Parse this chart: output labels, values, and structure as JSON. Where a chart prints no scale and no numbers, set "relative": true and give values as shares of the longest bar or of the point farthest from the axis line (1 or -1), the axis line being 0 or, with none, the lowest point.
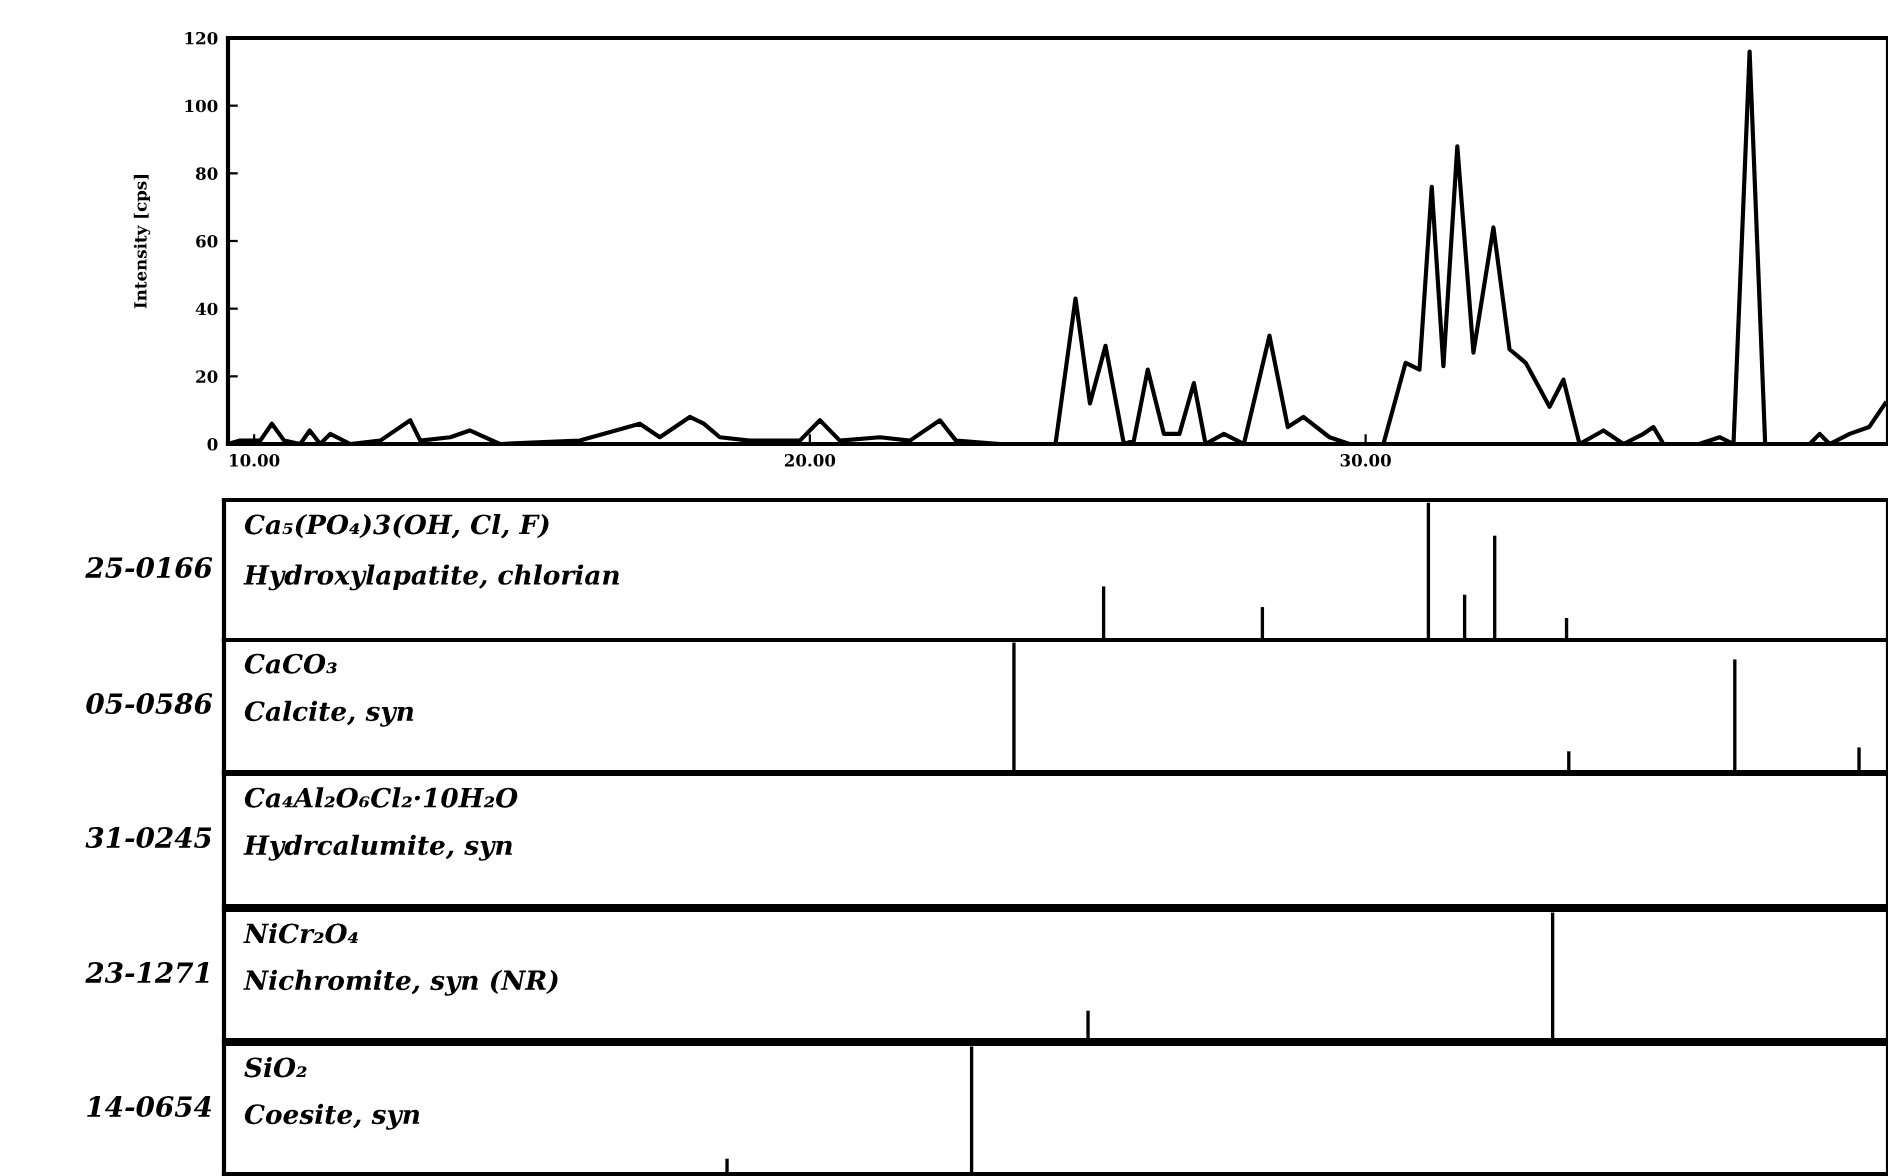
{
  "chart_data": [
    {
      "type": "line",
      "ylabel": "Intensity [cps]",
      "xlim": [
        9.53,
        39.4
      ],
      "ylim": [
        0,
        120
      ],
      "xticks": [
        {
          "value": 10,
          "label": "10.00"
        },
        {
          "value": 20,
          "label": "20.00"
        },
        {
          "value": 30,
          "label": "30.00"
        }
      ],
      "yticks": [
        0,
        20,
        40,
        60,
        80,
        100,
        120
      ],
      "grid": false,
      "series": [
        {
          "color": "#000000",
          "x": [
            9.53,
            9.75,
            10.11,
            10.32,
            10.54,
            10.83,
            11.0,
            11.19,
            11.37,
            11.73,
            12.27,
            12.81,
            12.99,
            13.53,
            13.88,
            14.42,
            15.86,
            16.94,
            17.3,
            17.84,
            18.09,
            18.38,
            18.92,
            19.82,
            20.18,
            20.54,
            21.26,
            21.8,
            22.34,
            22.63,
            23.42,
            24.14,
            24.42,
            24.78,
            25.04,
            25.32,
            25.65,
            25.83,
            26.08,
            26.37,
            26.65,
            26.91,
            27.12,
            27.45,
            27.81,
            28.27,
            28.6,
            28.88,
            29.35,
            29.71,
            30.32,
            30.72,
            30.97,
            31.19,
            31.4,
            31.65,
            31.94,
            32.3,
            32.59,
            32.88,
            33.31,
            33.56,
            33.85,
            34.28,
            34.64,
            35.0,
            35.18,
            35.36,
            36.0,
            36.37,
            36.62,
            36.91,
            37.19,
            37.99,
            38.17,
            38.35,
            38.71,
            39.06,
            39.35
          ],
          "values": [
            0,
            1,
            1,
            6,
            1,
            0,
            4,
            0,
            3,
            0,
            1,
            7,
            1,
            2,
            4,
            0,
            1,
            6,
            2,
            8,
            6,
            2,
            1,
            1,
            7,
            1,
            2,
            1,
            7,
            1,
            0,
            0,
            0,
            43,
            12,
            29,
            0,
            1,
            22,
            3,
            3,
            18,
            0,
            3,
            0,
            32,
            5,
            8,
            2,
            0,
            0,
            24,
            22,
            76,
            23,
            88,
            27,
            64,
            28,
            24,
            11,
            19,
            0,
            4,
            0,
            3,
            5,
            0,
            0,
            2,
            0,
            116,
            0,
            0,
            3,
            0,
            3,
            5,
            12
          ]
        }
      ]
    },
    {
      "type": "bar",
      "relative": true,
      "ylabel": "25-0166",
      "annotations": [
        "Ca₅(PO₄)3(OH, Cl, F)",
        "Hydroxylapatite, chlorian"
      ],
      "xlim": [
        9.53,
        39.4
      ],
      "tick_labels": false,
      "series": [
        {
          "color": "#000000",
          "x": [
            25.32,
            28.17,
            31.15,
            31.8,
            32.34,
            33.63
          ],
          "values": [
            0.39,
            0.24,
            1,
            0.33,
            0.76,
            0.16
          ]
        }
      ]
    },
    {
      "type": "bar",
      "relative": true,
      "ylabel": "05-0586",
      "annotations": [
        "CaCO₃",
        "Calcite, syn"
      ],
      "xlim": [
        9.53,
        39.4
      ],
      "tick_labels": false,
      "series": [
        {
          "color": "#000000",
          "x": [
            23.71,
            33.67,
            36.65,
            38.88
          ],
          "values": [
            1,
            0.16,
            0.87,
            0.19
          ]
        }
      ]
    },
    {
      "type": "other",
      "ylabel": "31-0245",
      "annotations": [
        "Ca₄Al₂O₆Cl₂·10H₂O",
        "Hydrcalumite, syn"
      ]
    },
    {
      "type": "bar",
      "relative": true,
      "ylabel": "23-1271",
      "annotations": [
        "NiCr₂O₄",
        "Nichromite, syn (NR)"
      ],
      "xlim": [
        9.53,
        39.4
      ],
      "tick_labels": false,
      "series": [
        {
          "color": "#000000",
          "x": [
            25.04,
            33.38
          ],
          "values": [
            0.23,
            1
          ]
        }
      ]
    },
    {
      "type": "bar",
      "relative": true,
      "ylabel": "14-0654",
      "annotations": [
        "SiO₂",
        "Coesite, syn"
      ],
      "xlim": [
        9.53,
        39.4
      ],
      "tick_labels": false,
      "series": [
        {
          "color": "#000000",
          "x": [
            18.56,
            22.95
          ],
          "values": [
            0.12,
            1
          ]
        }
      ]
    }
  ]
}
